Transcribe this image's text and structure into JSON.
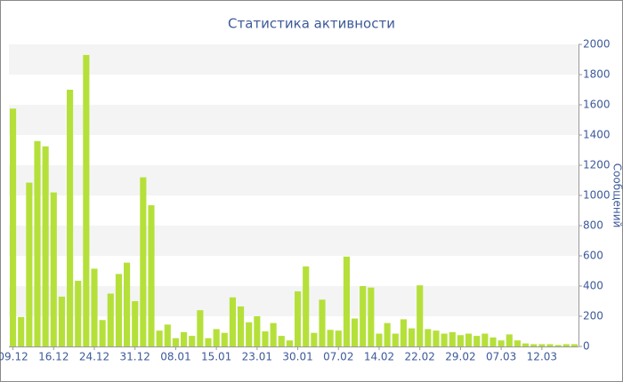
{
  "chart_data": {
    "type": "bar",
    "title": "Статистика активности",
    "y_label": "Сообщений",
    "categories": [
      "09.12",
      null,
      null,
      null,
      null,
      "16.12",
      null,
      null,
      null,
      null,
      "24.12",
      null,
      null,
      null,
      null,
      "31.12",
      null,
      null,
      null,
      null,
      "08.01",
      null,
      null,
      null,
      null,
      "15.01",
      null,
      null,
      null,
      null,
      "23.01",
      null,
      null,
      null,
      null,
      "30.01",
      null,
      null,
      null,
      null,
      "07.02",
      null,
      null,
      null,
      null,
      "14.02",
      null,
      null,
      null,
      null,
      "22.02",
      null,
      null,
      null,
      null,
      "29.02",
      null,
      null,
      null,
      null,
      "07.03",
      null,
      null,
      null,
      null,
      "12.03",
      null,
      null,
      null,
      null
    ],
    "values": [
      1575,
      195,
      1085,
      1360,
      1325,
      1020,
      330,
      1700,
      435,
      1930,
      515,
      175,
      350,
      480,
      555,
      300,
      1120,
      935,
      105,
      145,
      55,
      95,
      70,
      240,
      55,
      115,
      90,
      325,
      265,
      160,
      200,
      100,
      155,
      70,
      40,
      365,
      530,
      90,
      310,
      110,
      105,
      595,
      185,
      400,
      390,
      85,
      155,
      85,
      180,
      120,
      405,
      115,
      105,
      85,
      95,
      75,
      85,
      70,
      85,
      60,
      40,
      80,
      40,
      20,
      15,
      15,
      15,
      10,
      15,
      15
    ],
    "color": "#b5e03a",
    "ylim": [
      0,
      2000
    ],
    "yticks": [
      0,
      200,
      400,
      600,
      800,
      1000,
      1200,
      1400,
      1600,
      1800,
      2000
    ],
    "grid": true
  }
}
